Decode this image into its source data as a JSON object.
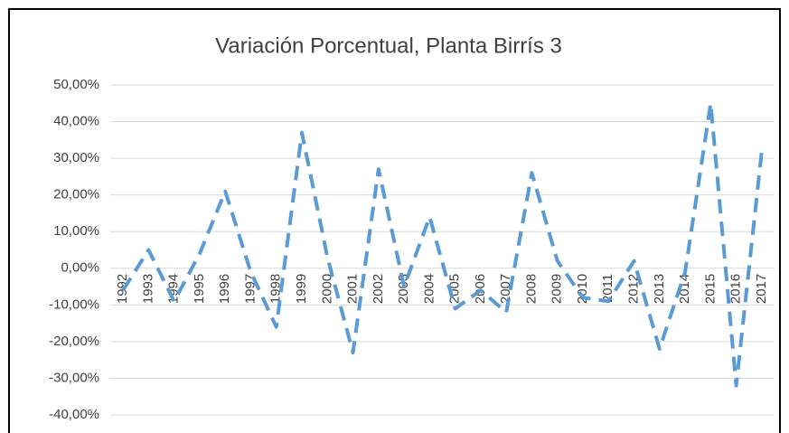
{
  "chart_data": {
    "type": "line",
    "title": "Variación Porcentual, Planta Birrís 3",
    "categories": [
      "1992",
      "1993",
      "1994",
      "1995",
      "1996",
      "1997",
      "1998",
      "1999",
      "2000",
      "2001",
      "2002",
      "2003",
      "2004",
      "2005",
      "2006",
      "2007",
      "2008",
      "2009",
      "2010",
      "2011",
      "2012",
      "2013",
      "2014",
      "2015",
      "2016",
      "2017"
    ],
    "series": [
      {
        "name": "Variación Porcentual",
        "color": "#5b9bd5",
        "values": [
          -6,
          5,
          -9,
          4,
          21,
          -1,
          -16,
          37,
          3,
          -23,
          27,
          -5,
          14,
          -11,
          -6,
          -12,
          26,
          2,
          -8,
          -9,
          2,
          -22,
          -1,
          45,
          -32,
          32
        ]
      }
    ],
    "ylim": [
      -40,
      50
    ],
    "yticks": [
      {
        "value": -40,
        "label": "-40,00%"
      },
      {
        "value": -30,
        "label": "-30,00%"
      },
      {
        "value": -20,
        "label": "-20,00%"
      },
      {
        "value": -10,
        "label": "-10,00%"
      },
      {
        "value": 0,
        "label": "0,00%"
      },
      {
        "value": 10,
        "label": "10,00%"
      },
      {
        "value": 20,
        "label": "20,00%"
      },
      {
        "value": 30,
        "label": "30,00%"
      },
      {
        "value": 40,
        "label": "40,00%"
      },
      {
        "value": 50,
        "label": "50,00%"
      }
    ],
    "grid": true
  }
}
